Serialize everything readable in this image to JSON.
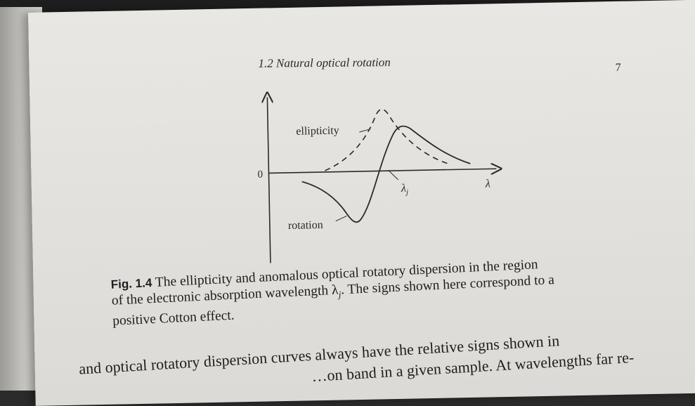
{
  "header": {
    "section_title": "1.2 Natural optical rotation",
    "page_number": "7"
  },
  "figure": {
    "labels": {
      "ellipticity": "ellipticity",
      "rotation": "rotation",
      "zero": "0",
      "lambda_j": "λ",
      "lambda_j_sub": "j",
      "lambda": "λ"
    }
  },
  "caption": {
    "label": "Fig. 1.4",
    "line1": " The ellipticity and anomalous optical rotatory dispersion in the region",
    "line2": "of the electronic absorption wavelength λ",
    "line2_sub": "j",
    "line2_end": ". The signs shown here correspond to a",
    "line3": "positive Cotton effect."
  },
  "body": {
    "line1": "and optical rotatory dispersion curves always have the relative signs shown in",
    "line2": "…on band in a given sample. At wavelengths far re-"
  }
}
